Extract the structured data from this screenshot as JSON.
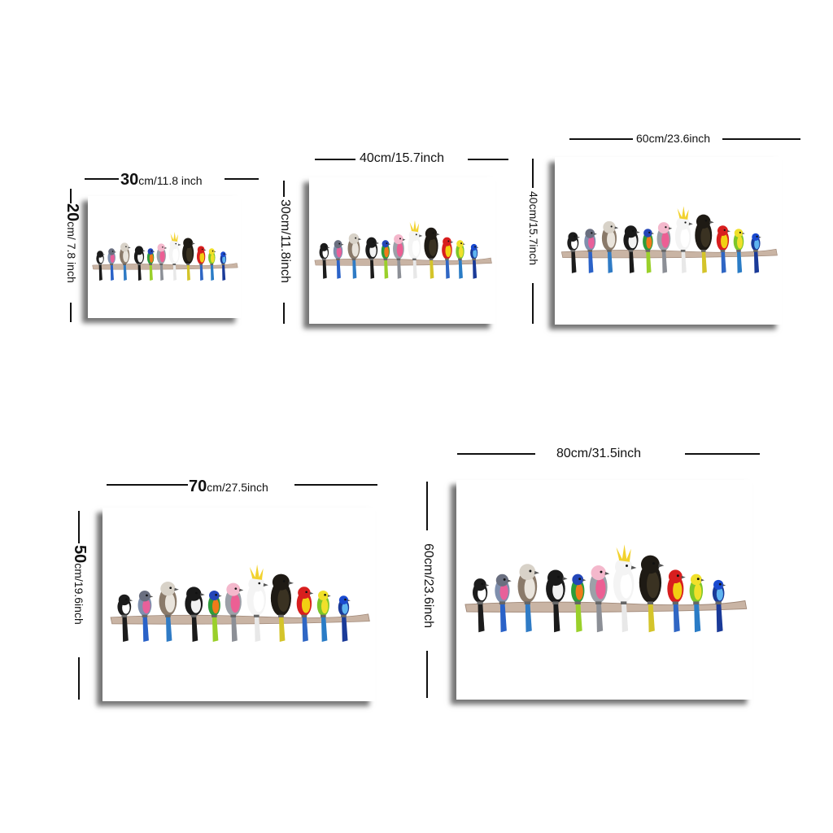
{
  "products": [
    {
      "id": "30x20",
      "width_label": {
        "num": "30",
        "unit": "cm/11.8 inch"
      },
      "height_label": {
        "num": "20",
        "unit": "cm/ 7.8 inch"
      }
    },
    {
      "id": "40x30",
      "width_label": {
        "num": "",
        "unit": "40cm/15.7inch"
      },
      "height_label": {
        "num": "",
        "unit": "30cm/11.8inch"
      }
    },
    {
      "id": "60x40",
      "width_label": {
        "num": "",
        "unit": "60cm/23.6inch"
      },
      "height_label": {
        "num": "",
        "unit": "40cm/15.7inch"
      }
    },
    {
      "id": "70x50",
      "width_label": {
        "num": "70",
        "unit": "cm/27.5inch"
      },
      "height_label": {
        "num": "50",
        "unit": "cm/19.6inch"
      }
    },
    {
      "id": "80x60",
      "width_label": {
        "num": "",
        "unit": "80cm/31.5inch"
      },
      "height_label": {
        "num": "",
        "unit": "60cm/23.6inch"
      }
    }
  ],
  "artwork": {
    "birds": [
      "willie-wagtail",
      "rose-robin",
      "kookaburra",
      "magpie",
      "rainbow-lorikeet",
      "galah",
      "sulphur-crested-cockatoo",
      "black-cockatoo",
      "eastern-rosella",
      "budgerigar",
      "superb-fairywren"
    ]
  }
}
